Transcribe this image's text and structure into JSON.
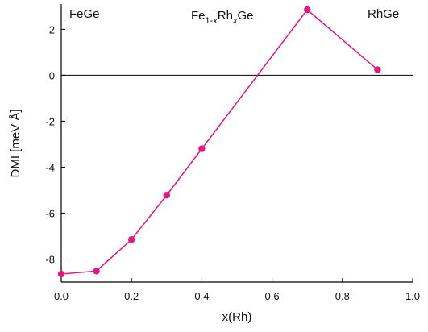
{
  "chart_data": {
    "type": "line",
    "x_label": "x(Rh)",
    "y_label": "DMI  [meV Å]",
    "annotations": [
      "FeGe",
      "RhGe"
    ],
    "compound_label": [
      "Fe",
      "1-",
      "x",
      "Rh",
      "x",
      "Ge"
    ],
    "x": [
      0,
      0.1,
      0.2,
      0.3,
      0.4,
      0.7,
      0.9
    ],
    "series": [
      {
        "color": "#e3177f",
        "values": [
          -8.65,
          -8.52,
          -7.15,
          -5.22,
          -3.2,
          2.85,
          0.24
        ]
      }
    ],
    "xlim": [
      0,
      1
    ],
    "xticks": [
      {
        "value": 0,
        "label": "0.0"
      },
      0.2,
      0.4,
      0.6,
      0.8,
      {
        "value": 1,
        "label": "1.0"
      }
    ],
    "ylim": [
      -9,
      3.1
    ],
    "yticks": [
      2,
      0,
      -2,
      -4,
      -6,
      -8
    ],
    "zero_line": true
  }
}
